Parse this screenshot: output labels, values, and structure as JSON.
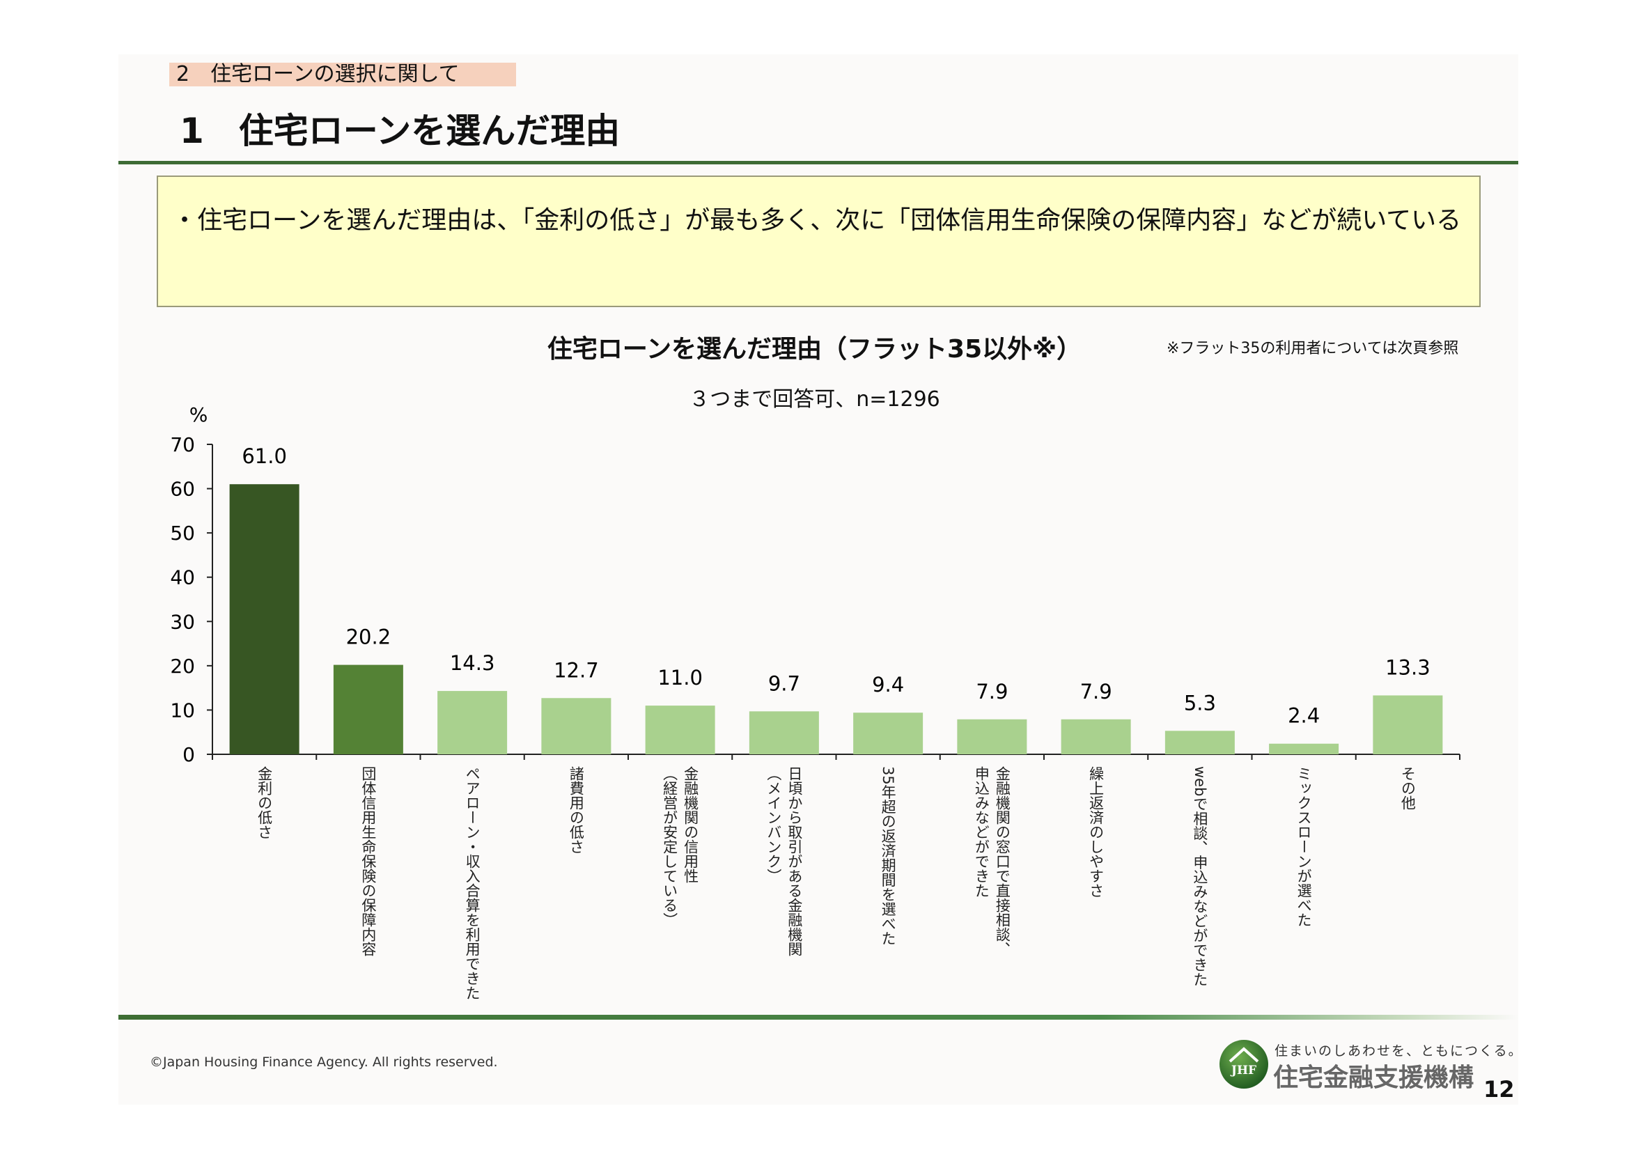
{
  "header": {
    "section": "2　住宅ローンの選択に関して",
    "title": "1　住宅ローンを選んだ理由"
  },
  "summary": "・住宅ローンを選んだ理由は、「金利の低さ」が最も多く、次に「団体信用生命保険の保障内容」などが続いている",
  "chart_data": {
    "type": "bar",
    "title": "住宅ローンを選んだ理由（フラット35以外※）",
    "note": "※フラット35の利用者については次頁参照",
    "subtitle": "３つまで回答可、n=1296",
    "ylabel": "%",
    "ylim": [
      0,
      70
    ],
    "yticks": [
      0,
      10,
      20,
      30,
      40,
      50,
      60,
      70
    ],
    "grid": false,
    "categories": [
      "金利の低さ",
      "団体信用生命保険の保障内容",
      "ペアローン・収入合算を利用できた",
      "諸費用の低さ",
      "金融機関の信用性\n（経営が安定している）",
      "日頃から取引がある金融機関\n（メインバンク）",
      "35年超の返済期間を選べた",
      "金融機関の窓口で直接相談、\n申込みなどができた",
      "繰上返済のしやすさ",
      "webで相談、申込みなどができた",
      "ミックスローンが選べた",
      "その他"
    ],
    "values": [
      61.0,
      20.2,
      14.3,
      12.7,
      11.0,
      9.7,
      9.4,
      7.9,
      7.9,
      5.3,
      2.4,
      13.3
    ],
    "colors": [
      "#375623",
      "#548235",
      "#a9d18e",
      "#a9d18e",
      "#a9d18e",
      "#a9d18e",
      "#a9d18e",
      "#a9d18e",
      "#a9d18e",
      "#a9d18e",
      "#a9d18e",
      "#a9d18e"
    ]
  },
  "footer": {
    "copyright": "©Japan Housing Finance Agency. All rights reserved.",
    "logo_tagline": "住まいのしあわせを、ともにつくる。",
    "logo_name": "住宅金融支援機構",
    "logo_mark": "JHF",
    "page_number": "12"
  }
}
